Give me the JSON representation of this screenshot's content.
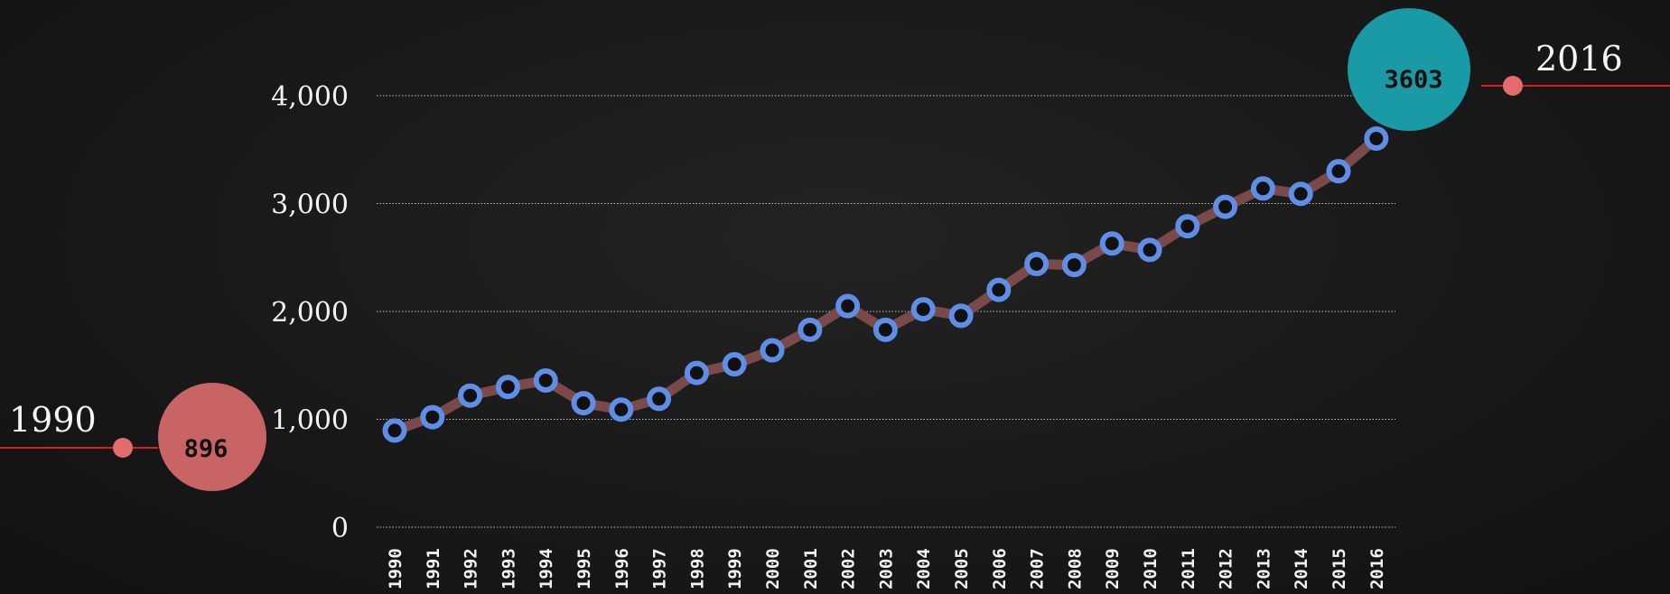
{
  "chart_data": {
    "type": "line",
    "title": "",
    "xlabel": "",
    "ylabel": "",
    "x": [
      "1990",
      "1991",
      "1992",
      "1993",
      "1994",
      "1995",
      "1996",
      "1997",
      "1998",
      "1999",
      "2000",
      "2001",
      "2002",
      "2003",
      "2004",
      "2005",
      "2006",
      "2007",
      "2008",
      "2009",
      "2010",
      "2011",
      "2012",
      "2013",
      "2014",
      "2015",
      "2016"
    ],
    "series": [
      {
        "values": [
          896,
          1020,
          1220,
          1300,
          1360,
          1150,
          1090,
          1190,
          1430,
          1510,
          1640,
          1830,
          2050,
          1830,
          2020,
          1960,
          2200,
          2440,
          2430,
          2630,
          2570,
          2790,
          2970,
          3140,
          3090,
          3300,
          3603
        ]
      }
    ],
    "ylim": [
      0,
      4000
    ],
    "yticks": [
      "0",
      "1,000",
      "2,000",
      "3,000",
      "4,000"
    ],
    "yticks_values": [
      0,
      1000,
      2000,
      3000,
      4000
    ],
    "grid": "horizontal dotted",
    "legend": "none",
    "start_marker": {
      "year": "1990",
      "value": "896"
    },
    "end_marker": {
      "year": "2016",
      "value": "3603"
    },
    "colors": {
      "line": "#7a4a4a",
      "marker": "#5f8ee6",
      "marker_fill": "#111111",
      "start_bubble": "#c96464",
      "end_bubble": "#1a9aa5",
      "connector": "#d81e1e",
      "connector_dot": "#e36b6b",
      "grid": "#bdbdbd"
    }
  }
}
